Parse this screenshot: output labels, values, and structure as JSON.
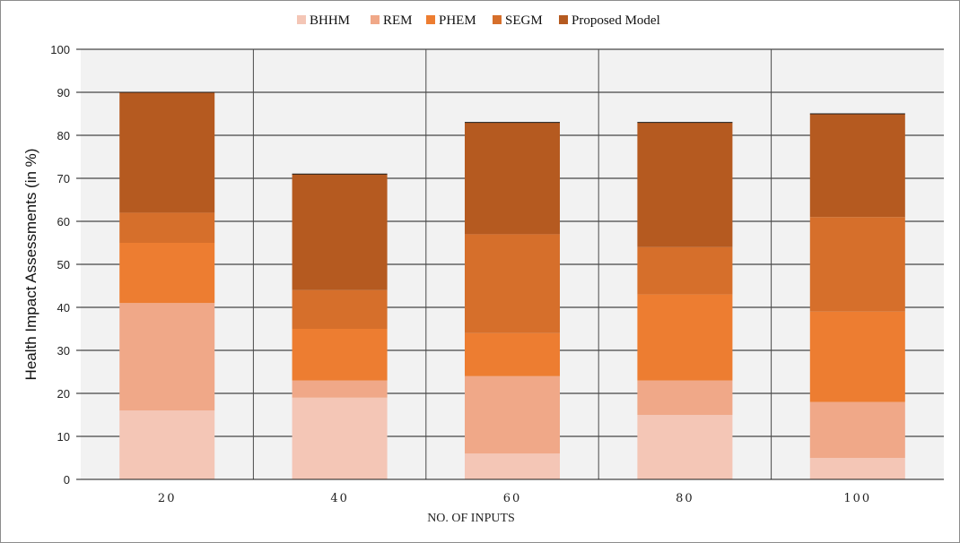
{
  "chart_data": {
    "type": "bar",
    "stacked": true,
    "categories": [
      "20",
      "40",
      "60",
      "80",
      "100"
    ],
    "series": [
      {
        "name": "BHHM",
        "color": "#f4c6b6",
        "values": [
          16,
          19,
          6,
          15,
          5
        ]
      },
      {
        "name": "REM",
        "color": "#f0a888",
        "values": [
          25,
          4,
          18,
          8,
          13
        ]
      },
      {
        "name": "PHEM",
        "color": "#ed7d31",
        "values": [
          14,
          12,
          10,
          20,
          21
        ]
      },
      {
        "name": "SEGM",
        "color": "#d66f2b",
        "values": [
          7,
          9,
          23,
          11,
          22
        ]
      },
      {
        "name": "Proposed Model",
        "color": "#b55a20",
        "values": [
          28,
          27,
          26,
          29,
          24
        ]
      }
    ],
    "xlabel": "NO. OF INPUTS",
    "ylabel": "Health Impact Assessments (in %)",
    "ylim": [
      0,
      100
    ],
    "yticks": [
      "0",
      "10",
      "20",
      "30",
      "40",
      "50",
      "60",
      "70",
      "80",
      "90",
      "100"
    ],
    "grid": true,
    "legend_position": "top"
  }
}
